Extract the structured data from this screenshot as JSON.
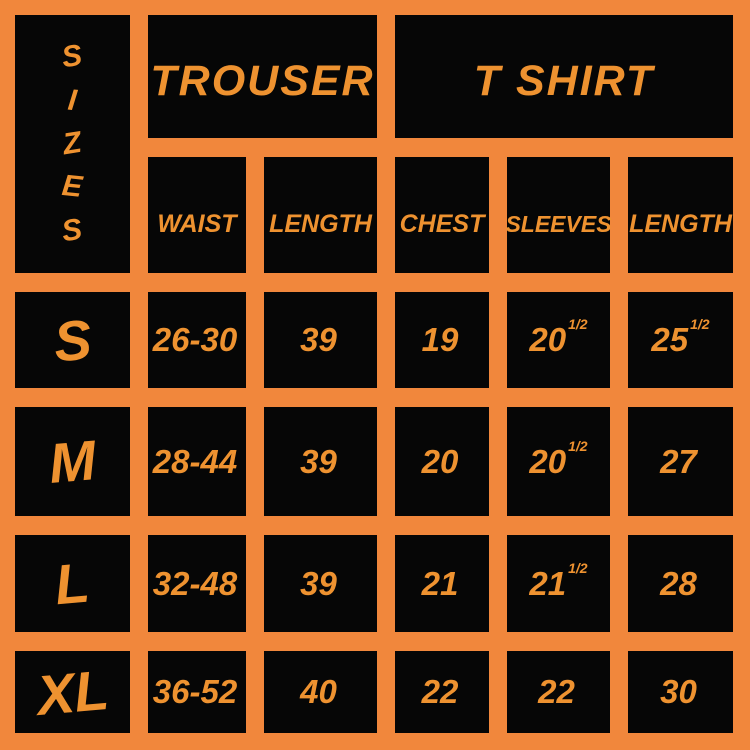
{
  "colors": {
    "background": "#f1873c",
    "cell_black": "#060606",
    "text_orange": "#ee9230"
  },
  "sizes_title": {
    "letters": [
      "S",
      "I",
      "Z",
      "E",
      "S"
    ]
  },
  "header": {
    "groups": [
      {
        "label": "TROUSER",
        "columns": [
          "WAIST",
          "LENGTH"
        ]
      },
      {
        "label": "T SHIRT",
        "columns": [
          "CHEST",
          "SLEEVES",
          "LENGTH"
        ]
      }
    ]
  },
  "rows": [
    {
      "size": "S",
      "cells": [
        {
          "v": "26-30"
        },
        {
          "v": "39"
        },
        {
          "v": "19"
        },
        {
          "v": "20",
          "frac": "1/2"
        },
        {
          "v": "25",
          "frac": "1/2"
        }
      ]
    },
    {
      "size": "M",
      "cells": [
        {
          "v": "28-44"
        },
        {
          "v": "39"
        },
        {
          "v": "20"
        },
        {
          "v": "20",
          "frac": "1/2"
        },
        {
          "v": "27"
        }
      ]
    },
    {
      "size": "L",
      "cells": [
        {
          "v": "32-48"
        },
        {
          "v": "39"
        },
        {
          "v": "21"
        },
        {
          "v": "21",
          "frac": "1/2"
        },
        {
          "v": "28"
        }
      ]
    },
    {
      "size": "XL",
      "cells": [
        {
          "v": "36-52"
        },
        {
          "v": "40"
        },
        {
          "v": "22"
        },
        {
          "v": "22"
        },
        {
          "v": "30"
        }
      ]
    }
  ],
  "chart_data": {
    "type": "table",
    "title": "SIZES",
    "column_groups": [
      {
        "label": "TROUSER",
        "span": 2
      },
      {
        "label": "T SHIRT",
        "span": 3
      }
    ],
    "columns": [
      "SIZES",
      "WAIST",
      "LENGTH",
      "CHEST",
      "SLEEVES",
      "LENGTH"
    ],
    "rows": [
      [
        "S",
        "26-30",
        "39",
        "19",
        "20 1/2",
        "25 1/2"
      ],
      [
        "M",
        "28-44",
        "39",
        "20",
        "20 1/2",
        "27"
      ],
      [
        "L",
        "32-48",
        "39",
        "21",
        "21 1/2",
        "28"
      ],
      [
        "XL",
        "36-52",
        "40",
        "22",
        "22",
        "30"
      ]
    ]
  }
}
